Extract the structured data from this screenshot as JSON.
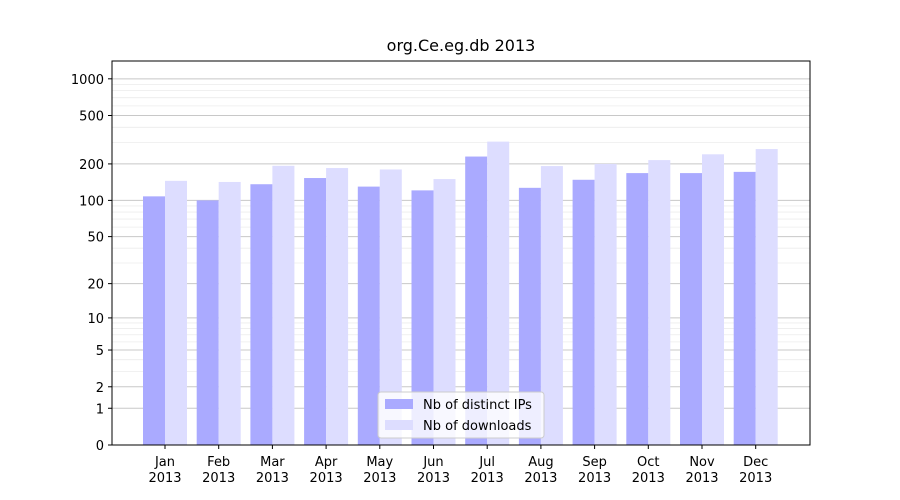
{
  "chart_data": {
    "type": "bar",
    "title": "org.Ce.eg.db 2013",
    "xlabel": "",
    "ylabel": "",
    "y_scale": "symlog",
    "ylim": [
      0,
      1400
    ],
    "y_ticks": [
      0,
      1,
      2,
      5,
      10,
      20,
      50,
      100,
      200,
      500,
      1000
    ],
    "categories": [
      {
        "month": "Jan",
        "year": "2013"
      },
      {
        "month": "Feb",
        "year": "2013"
      },
      {
        "month": "Mar",
        "year": "2013"
      },
      {
        "month": "Apr",
        "year": "2013"
      },
      {
        "month": "May",
        "year": "2013"
      },
      {
        "month": "Jun",
        "year": "2013"
      },
      {
        "month": "Jul",
        "year": "2013"
      },
      {
        "month": "Aug",
        "year": "2013"
      },
      {
        "month": "Sep",
        "year": "2013"
      },
      {
        "month": "Oct",
        "year": "2013"
      },
      {
        "month": "Nov",
        "year": "2013"
      },
      {
        "month": "Dec",
        "year": "2013"
      }
    ],
    "series": [
      {
        "name": "Nb of distinct IPs",
        "color": "#aaaaff",
        "values": [
          108,
          100,
          136,
          153,
          130,
          121,
          230,
          127,
          148,
          168,
          168,
          172
        ]
      },
      {
        "name": "Nb of downloads",
        "color": "#ddddff",
        "values": [
          145,
          142,
          193,
          185,
          180,
          150,
          305,
          192,
          200,
          215,
          240,
          265
        ]
      }
    ],
    "grid": true,
    "legend_position": "bottom-center"
  }
}
